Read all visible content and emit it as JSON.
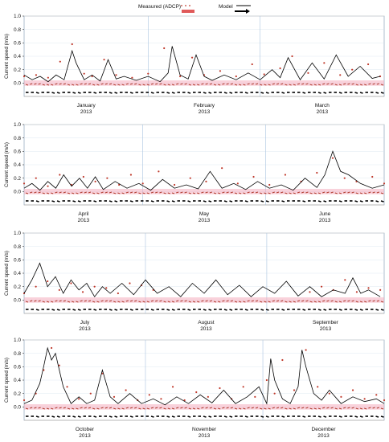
{
  "legend": {
    "measured_label": "Measured (ADCP)",
    "model_label": "Model"
  },
  "colors": {
    "measured": "#c0392b",
    "model": "#000000",
    "grid": "#a9c4e0",
    "direction_band": "#f4a6b8"
  },
  "chart_data": [
    {
      "type": "line",
      "ylabel": "Current speed (m/s)",
      "ylim": [
        -0.2,
        1.0
      ],
      "yticks": [
        0.0,
        0.2,
        0.4,
        0.6,
        0.8,
        1.0
      ],
      "months": [
        {
          "name": "January",
          "year": "2013"
        },
        {
          "name": "February",
          "year": "2013"
        },
        {
          "name": "March",
          "year": "2013"
        }
      ],
      "x_days": [
        0,
        31,
        59,
        90
      ],
      "grid": true,
      "series": [
        {
          "name": "Measured (ADCP)",
          "style": "points",
          "x": [
            0,
            3,
            6,
            9,
            12,
            15,
            17,
            20,
            23,
            27,
            31,
            35,
            39,
            42,
            45,
            49,
            53,
            57,
            60,
            64,
            67,
            71,
            75,
            79,
            82,
            86,
            89
          ],
          "y": [
            0.1,
            0.12,
            0.08,
            0.32,
            0.58,
            0.14,
            0.1,
            0.35,
            0.12,
            0.08,
            0.14,
            0.52,
            0.1,
            0.38,
            0.12,
            0.18,
            0.1,
            0.28,
            0.13,
            0.22,
            0.4,
            0.15,
            0.3,
            0.12,
            0.2,
            0.28,
            0.1
          ]
        },
        {
          "name": "Model",
          "style": "line",
          "x": [
            0,
            2,
            4,
            6,
            8,
            10,
            12,
            13,
            15,
            17,
            19,
            21,
            23,
            25,
            28,
            31,
            34,
            36,
            37,
            39,
            41,
            43,
            45,
            47,
            50,
            53,
            56,
            59,
            62,
            64,
            66,
            69,
            72,
            75,
            78,
            81,
            84,
            87,
            89
          ],
          "y": [
            0.12,
            0.05,
            0.1,
            0.02,
            0.12,
            0.05,
            0.48,
            0.3,
            0.05,
            0.12,
            0.03,
            0.35,
            0.06,
            0.1,
            0.04,
            0.1,
            0.02,
            0.15,
            0.55,
            0.12,
            0.06,
            0.42,
            0.1,
            0.04,
            0.12,
            0.05,
            0.15,
            0.05,
            0.2,
            0.08,
            0.38,
            0.05,
            0.3,
            0.06,
            0.42,
            0.1,
            0.25,
            0.07,
            0.1
          ]
        }
      ]
    },
    {
      "type": "line",
      "ylabel": "Current speed (m/s)",
      "ylim": [
        -0.2,
        1.0
      ],
      "yticks": [
        0.0,
        0.2,
        0.4,
        0.6,
        0.8,
        1.0
      ],
      "months": [
        {
          "name": "April",
          "year": "2013"
        },
        {
          "name": "May",
          "year": "2013"
        },
        {
          "name": "June",
          "year": "2013"
        }
      ],
      "x_days": [
        0,
        30,
        61,
        91
      ],
      "grid": true,
      "series": [
        {
          "name": "Measured (ADCP)",
          "style": "points",
          "x": [
            0,
            3,
            6,
            9,
            12,
            15,
            18,
            21,
            24,
            27,
            30,
            34,
            38,
            42,
            46,
            50,
            54,
            58,
            62,
            66,
            70,
            74,
            78,
            81,
            84,
            88,
            91
          ],
          "y": [
            0.12,
            0.2,
            0.08,
            0.25,
            0.1,
            0.22,
            0.15,
            0.2,
            0.1,
            0.25,
            0.12,
            0.3,
            0.1,
            0.2,
            0.15,
            0.35,
            0.12,
            0.22,
            0.1,
            0.25,
            0.15,
            0.28,
            0.5,
            0.2,
            0.15,
            0.22,
            0.12
          ]
        },
        {
          "name": "Model",
          "style": "line",
          "x": [
            0,
            2,
            4,
            6,
            8,
            10,
            12,
            14,
            16,
            18,
            20,
            23,
            26,
            29,
            32,
            35,
            38,
            41,
            44,
            47,
            50,
            53,
            56,
            59,
            62,
            65,
            68,
            71,
            74,
            76,
            78,
            80,
            82,
            85,
            88,
            91
          ],
          "y": [
            0.05,
            0.12,
            0.02,
            0.15,
            0.05,
            0.25,
            0.08,
            0.2,
            0.05,
            0.22,
            0.03,
            0.15,
            0.05,
            0.12,
            0.02,
            0.18,
            0.05,
            0.1,
            0.04,
            0.3,
            0.05,
            0.12,
            0.03,
            0.15,
            0.05,
            0.1,
            0.02,
            0.2,
            0.06,
            0.25,
            0.6,
            0.3,
            0.25,
            0.12,
            0.05,
            0.1
          ]
        }
      ]
    },
    {
      "type": "line",
      "ylabel": "Current speed (m/s)",
      "ylim": [
        -0.2,
        1.0
      ],
      "yticks": [
        0.0,
        0.2,
        0.4,
        0.6,
        0.8,
        1.0
      ],
      "months": [
        {
          "name": "July",
          "year": "2013"
        },
        {
          "name": "August",
          "year": "2013"
        },
        {
          "name": "September",
          "year": "2013"
        }
      ],
      "x_days": [
        0,
        31,
        62,
        92
      ],
      "grid": true,
      "series": [
        {
          "name": "Measured (ADCP)",
          "style": "points",
          "x": [
            0,
            3,
            6,
            9,
            12,
            15,
            18,
            21,
            24,
            27,
            30,
            33,
            73,
            76,
            79,
            82,
            85,
            88,
            91
          ],
          "y": [
            0.1,
            0.2,
            0.28,
            0.15,
            0.25,
            0.12,
            0.2,
            0.18,
            0.1,
            0.25,
            0.22,
            0.15,
            0.12,
            0.2,
            0.15,
            0.3,
            0.12,
            0.18,
            0.15
          ]
        },
        {
          "name": "Model",
          "style": "line",
          "x": [
            0,
            2,
            4,
            6,
            8,
            10,
            12,
            14,
            16,
            18,
            20,
            22,
            25,
            28,
            31,
            34,
            37,
            40,
            43,
            46,
            49,
            52,
            55,
            58,
            61,
            64,
            67,
            70,
            73,
            76,
            79,
            82,
            84,
            86,
            88,
            91
          ],
          "y": [
            0.1,
            0.3,
            0.55,
            0.2,
            0.35,
            0.1,
            0.3,
            0.15,
            0.25,
            0.05,
            0.2,
            0.1,
            0.25,
            0.08,
            0.3,
            0.1,
            0.2,
            0.05,
            0.25,
            0.1,
            0.3,
            0.08,
            0.22,
            0.05,
            0.2,
            0.1,
            0.28,
            0.06,
            0.2,
            0.05,
            0.15,
            0.1,
            0.33,
            0.1,
            0.15,
            0.05
          ]
        }
      ]
    },
    {
      "type": "line",
      "ylabel": "Current speed (m/s)",
      "ylim": [
        -0.2,
        1.0
      ],
      "yticks": [
        0.0,
        0.2,
        0.4,
        0.6,
        0.8,
        1.0
      ],
      "months": [
        {
          "name": "October",
          "year": "2013"
        },
        {
          "name": "November",
          "year": "2013"
        },
        {
          "name": "December",
          "year": "2013"
        }
      ],
      "x_days": [
        0,
        31,
        61,
        92
      ],
      "grid": true,
      "series": [
        {
          "name": "Measured (ADCP)",
          "style": "points",
          "x": [
            0,
            3,
            5,
            7,
            9,
            11,
            14,
            17,
            20,
            23,
            26,
            29,
            32,
            35,
            38,
            41,
            44,
            47,
            50,
            53,
            56,
            59,
            62,
            64,
            66,
            69,
            72,
            75,
            78,
            81,
            84,
            87,
            90,
            92
          ],
          "y": [
            0.1,
            0.2,
            0.55,
            0.88,
            0.62,
            0.3,
            0.12,
            0.2,
            0.5,
            0.15,
            0.25,
            0.1,
            0.18,
            0.12,
            0.3,
            0.1,
            0.22,
            0.15,
            0.28,
            0.12,
            0.3,
            0.15,
            0.4,
            0.2,
            0.7,
            0.25,
            0.85,
            0.3,
            0.2,
            0.15,
            0.25,
            0.12,
            0.18,
            0.1
          ]
        },
        {
          "name": "Model",
          "style": "line",
          "x": [
            0,
            2,
            4,
            5,
            6,
            7,
            8,
            9,
            10,
            12,
            14,
            16,
            18,
            20,
            22,
            24,
            27,
            30,
            33,
            36,
            39,
            42,
            45,
            48,
            51,
            54,
            57,
            60,
            62,
            63,
            64,
            66,
            68,
            70,
            71,
            72,
            74,
            76,
            78,
            81,
            84,
            87,
            90,
            92
          ],
          "y": [
            0.05,
            0.1,
            0.35,
            0.6,
            0.88,
            0.7,
            0.8,
            0.55,
            0.3,
            0.05,
            0.15,
            0.05,
            0.1,
            0.55,
            0.15,
            0.05,
            0.2,
            0.05,
            0.12,
            0.03,
            0.15,
            0.05,
            0.18,
            0.06,
            0.25,
            0.05,
            0.15,
            0.3,
            0.05,
            0.72,
            0.4,
            0.12,
            0.05,
            0.3,
            0.85,
            0.6,
            0.2,
            0.1,
            0.25,
            0.05,
            0.15,
            0.08,
            0.12,
            0.05
          ]
        }
      ]
    }
  ]
}
